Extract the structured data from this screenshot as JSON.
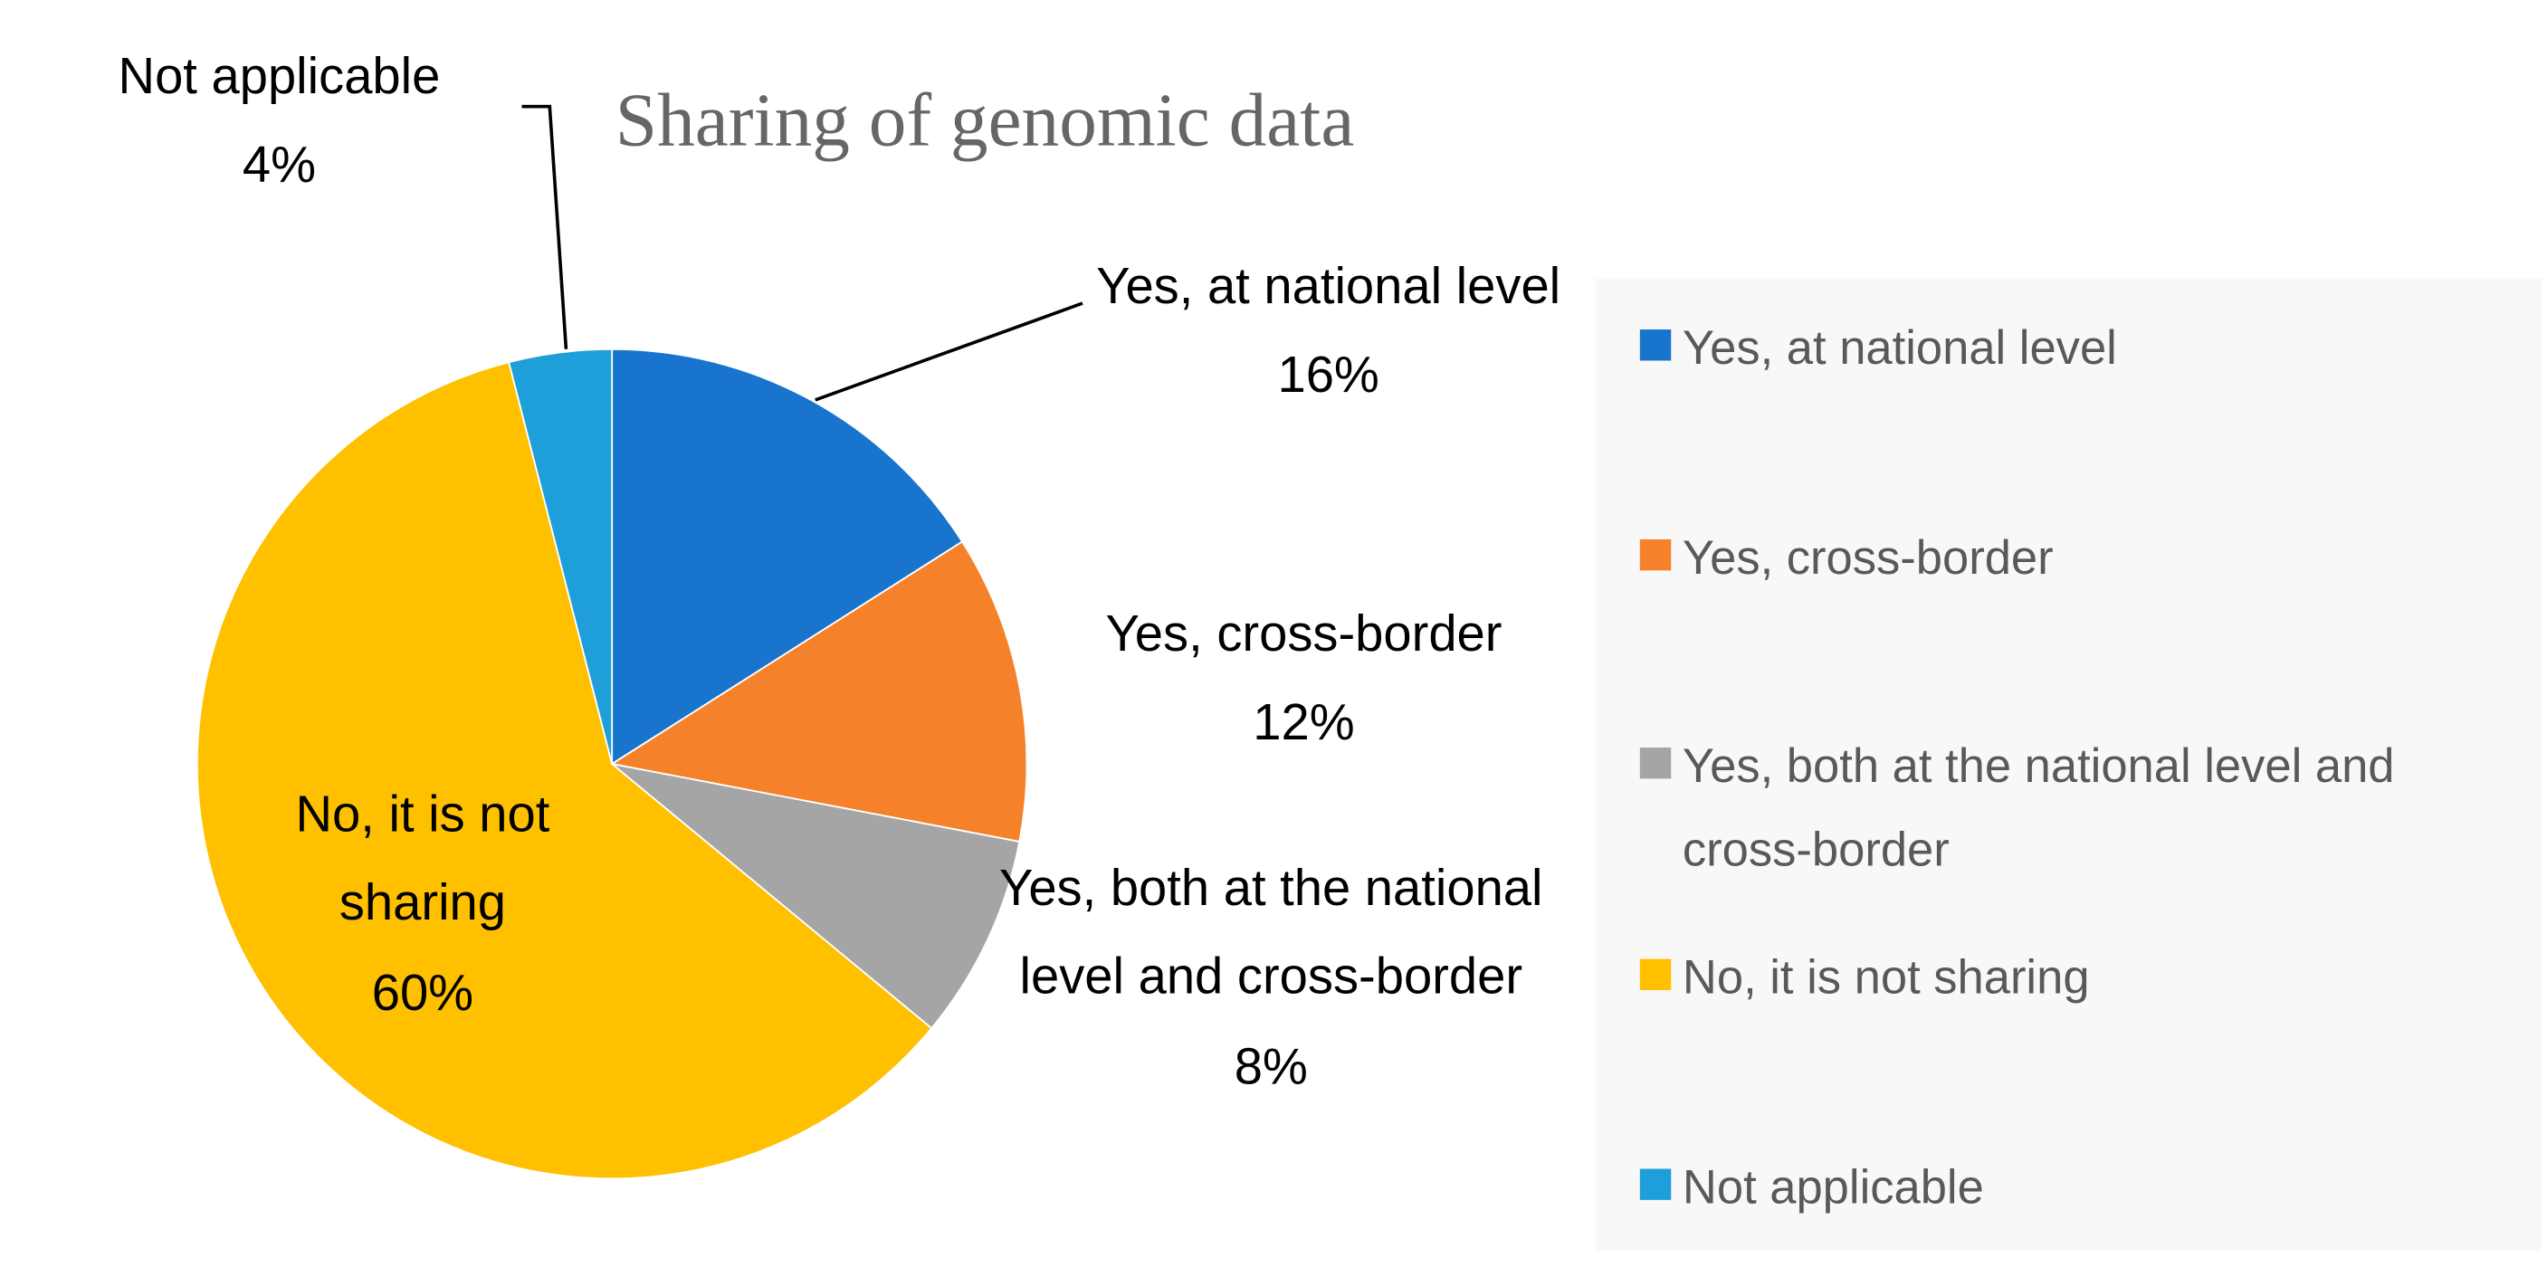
{
  "chart_data": {
    "type": "pie",
    "title": "Sharing of genomic data",
    "categories": [
      "Yes, at national level",
      "Yes, cross-border",
      "Yes, both at the national level and cross-border",
      "No, it is not sharing",
      "Not applicable"
    ],
    "values": [
      16,
      12,
      8,
      60,
      4
    ],
    "value_labels": [
      "16%",
      "12%",
      "8%",
      "60%",
      "4%"
    ],
    "colors": [
      "#1874cd",
      "#f5822a",
      "#a5a5a5",
      "#ffc000",
      "#1e9fd9"
    ],
    "legend": "right"
  }
}
